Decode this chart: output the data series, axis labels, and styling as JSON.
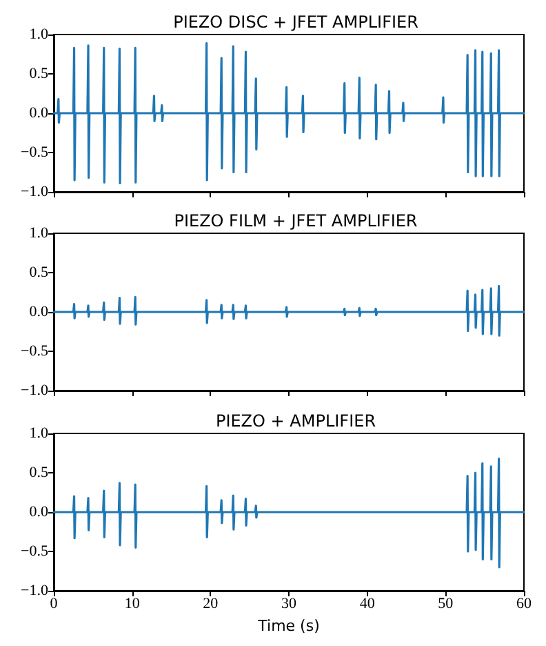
{
  "chart_data": [
    {
      "type": "line",
      "title": "PIEZO DISC + JFET AMPLIFIER",
      "marker": "none",
      "tick_labels": "y",
      "xlim": [
        0,
        60
      ],
      "xticks": [
        {
          "value": 0,
          "label": null
        },
        {
          "value": 10,
          "label": null
        },
        {
          "value": 20,
          "label": null
        },
        {
          "value": 30,
          "label": null
        },
        {
          "value": 40,
          "label": null
        },
        {
          "value": 50,
          "label": null
        },
        {
          "value": 60,
          "label": null
        }
      ],
      "ylim": [
        -1,
        1
      ],
      "yticks": [
        {
          "value": -1,
          "label": "−1.0"
        },
        {
          "value": -0.5,
          "label": "−0.5"
        },
        {
          "value": 0,
          "label": "0.0"
        },
        {
          "value": 0.5,
          "label": "0.5"
        },
        {
          "value": 1,
          "label": "1.0"
        }
      ],
      "series": [
        {
          "color": "#1f77b4",
          "x": [
            0,
            0.5,
            0.6,
            0.65,
            0.75,
            2.5,
            2.6,
            2.65,
            2.75,
            4.3,
            4.4,
            4.45,
            4.55,
            6.3,
            6.4,
            6.45,
            6.55,
            8.3,
            8.4,
            8.45,
            8.55,
            10.3,
            10.4,
            10.45,
            10.55,
            12.7,
            12.8,
            12.85,
            12.95,
            13.7,
            13.8,
            13.85,
            13.95,
            19.4,
            19.5,
            19.55,
            19.65,
            21.3,
            21.4,
            21.45,
            21.55,
            22.8,
            22.9,
            22.95,
            23.05,
            24.4,
            24.5,
            24.55,
            24.65,
            25.7,
            25.8,
            25.85,
            25.95,
            29.6,
            29.7,
            29.75,
            29.85,
            31.7,
            31.8,
            31.85,
            31.95,
            37,
            37.1,
            37.15,
            37.25,
            38.9,
            39,
            39.05,
            39.15,
            41,
            41.1,
            41.15,
            41.25,
            42.7,
            42.8,
            42.85,
            42.95,
            44.5,
            44.6,
            44.65,
            44.75,
            49.6,
            49.7,
            49.75,
            49.85,
            52.7,
            52.8,
            52.85,
            52.95,
            53.7,
            53.8,
            53.85,
            53.95,
            54.6,
            54.7,
            54.75,
            54.85,
            55.7,
            55.8,
            55.85,
            55.95,
            56.7,
            56.8,
            56.85,
            56.95,
            60
          ],
          "values": [
            0,
            0,
            0.18,
            -0.12,
            0,
            0,
            0.83,
            -0.85,
            0,
            0,
            0.86,
            -0.82,
            0,
            0,
            0.83,
            -0.88,
            0,
            0,
            0.82,
            -0.89,
            0,
            0,
            0.83,
            -0.88,
            0,
            0,
            0.22,
            -0.1,
            0,
            0,
            0.1,
            -0.1,
            0,
            0,
            0.89,
            -0.85,
            0,
            0,
            0.7,
            -0.7,
            0,
            0,
            0.85,
            -0.75,
            0,
            0,
            0.78,
            -0.75,
            0,
            0,
            0.44,
            -0.46,
            0,
            0,
            0.33,
            -0.3,
            0,
            0,
            0.22,
            -0.24,
            0,
            0,
            0.38,
            -0.25,
            0,
            0,
            0.45,
            -0.32,
            0,
            0,
            0.36,
            -0.33,
            0,
            0,
            0.28,
            -0.25,
            0,
            0,
            0.13,
            -0.1,
            0,
            0,
            0.2,
            -0.12,
            0,
            0,
            0.74,
            -0.75,
            0,
            0,
            0.8,
            -0.8,
            0,
            0,
            0.78,
            -0.8,
            0,
            0,
            0.76,
            -0.8,
            0,
            0,
            0.8,
            -0.8,
            0,
            0
          ]
        }
      ]
    },
    {
      "type": "line",
      "title": "PIEZO FILM + JFET AMPLIFIER",
      "marker": "none",
      "tick_labels": "y",
      "xlim": [
        0,
        60
      ],
      "xticks": [
        {
          "value": 0,
          "label": null
        },
        {
          "value": 10,
          "label": null
        },
        {
          "value": 20,
          "label": null
        },
        {
          "value": 30,
          "label": null
        },
        {
          "value": 40,
          "label": null
        },
        {
          "value": 50,
          "label": null
        },
        {
          "value": 60,
          "label": null
        }
      ],
      "ylim": [
        -1,
        1
      ],
      "yticks": [
        {
          "value": -1,
          "label": "−1.0"
        },
        {
          "value": -0.5,
          "label": "−0.5"
        },
        {
          "value": 0,
          "label": "0.0"
        },
        {
          "value": 0.5,
          "label": "0.5"
        },
        {
          "value": 1,
          "label": "1.0"
        }
      ],
      "series": [
        {
          "color": "#1f77b4",
          "x": [
            0,
            2.5,
            2.6,
            2.65,
            2.75,
            4.3,
            4.4,
            4.45,
            4.55,
            6.3,
            6.4,
            6.45,
            6.55,
            8.3,
            8.4,
            8.45,
            8.55,
            10.3,
            10.4,
            10.45,
            10.55,
            19.4,
            19.5,
            19.55,
            19.65,
            21.3,
            21.4,
            21.45,
            21.55,
            22.8,
            22.9,
            22.95,
            23.05,
            24.4,
            24.5,
            24.55,
            24.65,
            29.6,
            29.7,
            29.75,
            29.85,
            37,
            37.1,
            37.15,
            37.25,
            38.9,
            39,
            39.05,
            39.15,
            41,
            41.1,
            41.15,
            41.25,
            52.7,
            52.8,
            52.85,
            52.95,
            53.7,
            53.8,
            53.85,
            53.95,
            54.6,
            54.7,
            54.75,
            54.85,
            55.7,
            55.8,
            55.85,
            55.95,
            56.7,
            56.8,
            56.85,
            56.95,
            60
          ],
          "values": [
            0,
            0,
            0.1,
            -0.08,
            0,
            0,
            0.08,
            -0.06,
            0,
            0,
            0.12,
            -0.1,
            0,
            0,
            0.18,
            -0.15,
            0,
            0,
            0.19,
            -0.16,
            0,
            0,
            0.15,
            -0.14,
            0,
            0,
            0.09,
            -0.08,
            0,
            0,
            0.09,
            -0.09,
            0,
            0,
            0.08,
            -0.08,
            0,
            0,
            0.06,
            -0.06,
            0,
            0,
            0.04,
            -0.04,
            0,
            0,
            0.05,
            -0.05,
            0,
            0,
            0.04,
            -0.04,
            0,
            0,
            0.27,
            -0.24,
            0,
            0,
            0.22,
            -0.2,
            0,
            0,
            0.28,
            -0.28,
            0,
            0,
            0.3,
            -0.28,
            0,
            0,
            0.33,
            -0.3,
            0,
            0
          ]
        }
      ]
    },
    {
      "type": "line",
      "title": "PIEZO + AMPLIFIER",
      "xlabel": "Time (s)",
      "marker": "none",
      "xlim": [
        0,
        60
      ],
      "xticks": [
        0,
        10,
        20,
        30,
        40,
        50,
        60
      ],
      "ylim": [
        -1,
        1
      ],
      "yticks": [
        {
          "value": -1,
          "label": "−1.0"
        },
        {
          "value": -0.5,
          "label": "−0.5"
        },
        {
          "value": 0,
          "label": "0.0"
        },
        {
          "value": 0.5,
          "label": "0.5"
        },
        {
          "value": 1,
          "label": "1.0"
        }
      ],
      "series": [
        {
          "color": "#1f77b4",
          "x": [
            0,
            2.5,
            2.6,
            2.65,
            2.75,
            4.3,
            4.4,
            4.45,
            4.55,
            6.3,
            6.4,
            6.45,
            6.55,
            8.3,
            8.4,
            8.45,
            8.55,
            10.3,
            10.4,
            10.45,
            10.55,
            19.4,
            19.5,
            19.55,
            19.65,
            21.3,
            21.4,
            21.45,
            21.55,
            22.8,
            22.9,
            22.95,
            23.05,
            24.4,
            24.5,
            24.55,
            24.65,
            25.7,
            25.8,
            25.85,
            25.95,
            52.7,
            52.8,
            52.85,
            52.95,
            53.7,
            53.8,
            53.85,
            53.95,
            54.6,
            54.7,
            54.75,
            54.85,
            55.7,
            55.8,
            55.85,
            55.95,
            56.7,
            56.8,
            56.85,
            56.95,
            60
          ],
          "values": [
            0,
            0,
            0.2,
            -0.33,
            0,
            0,
            0.18,
            -0.23,
            0,
            0,
            0.27,
            -0.32,
            0,
            0,
            0.37,
            -0.42,
            0,
            0,
            0.35,
            -0.45,
            0,
            0,
            0.33,
            -0.32,
            0,
            0,
            0.15,
            -0.14,
            0,
            0,
            0.21,
            -0.22,
            0,
            0,
            0.17,
            -0.17,
            0,
            0,
            0.08,
            -0.07,
            0,
            0,
            0.46,
            -0.5,
            0,
            0,
            0.5,
            -0.48,
            0,
            0,
            0.62,
            -0.6,
            0,
            0,
            0.58,
            -0.6,
            0,
            0,
            0.68,
            -0.7,
            0,
            0
          ]
        }
      ]
    }
  ]
}
